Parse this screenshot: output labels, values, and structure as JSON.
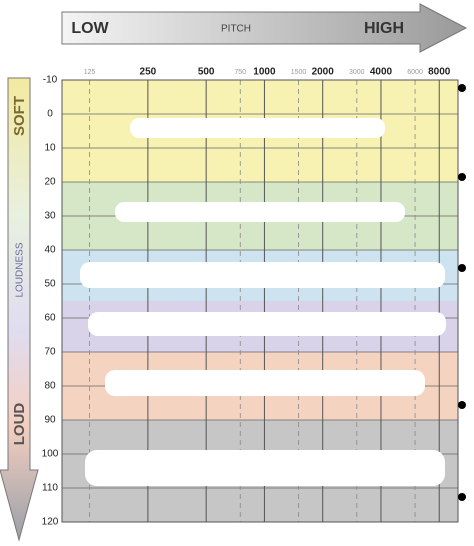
{
  "chart_data": {
    "type": "audiogram",
    "pitch_low": "LOW",
    "pitch_label": "PITCH",
    "pitch_high": "HIGH",
    "loud_soft": "SOFT",
    "loud_label": "LOUDNESS",
    "loud_loud": "LOUD",
    "xscale": "log",
    "xlim": [
      90,
      10000
    ],
    "xticks": [
      250,
      500,
      1000,
      2000,
      4000,
      8000
    ],
    "xticks_minor": [
      125,
      750,
      1500,
      3000,
      6000
    ],
    "ylim": [
      -10,
      120
    ],
    "y_reversed": true,
    "yticks": [
      -10,
      0,
      10,
      20,
      30,
      40,
      50,
      60,
      70,
      80,
      90,
      100,
      110,
      120
    ],
    "grid": true,
    "bands": [
      {
        "from": -10,
        "to": 20,
        "color": "#f7f2b2"
      },
      {
        "from": 20,
        "to": 40,
        "color": "#d5e7c6"
      },
      {
        "from": 40,
        "to": 55,
        "color": "#cde3ef"
      },
      {
        "from": 55,
        "to": 70,
        "color": "#d8d3e9"
      },
      {
        "from": 70,
        "to": 90,
        "color": "#f5d3c1"
      },
      {
        "from": 90,
        "to": 120,
        "color": "#c6c6c6"
      }
    ]
  }
}
